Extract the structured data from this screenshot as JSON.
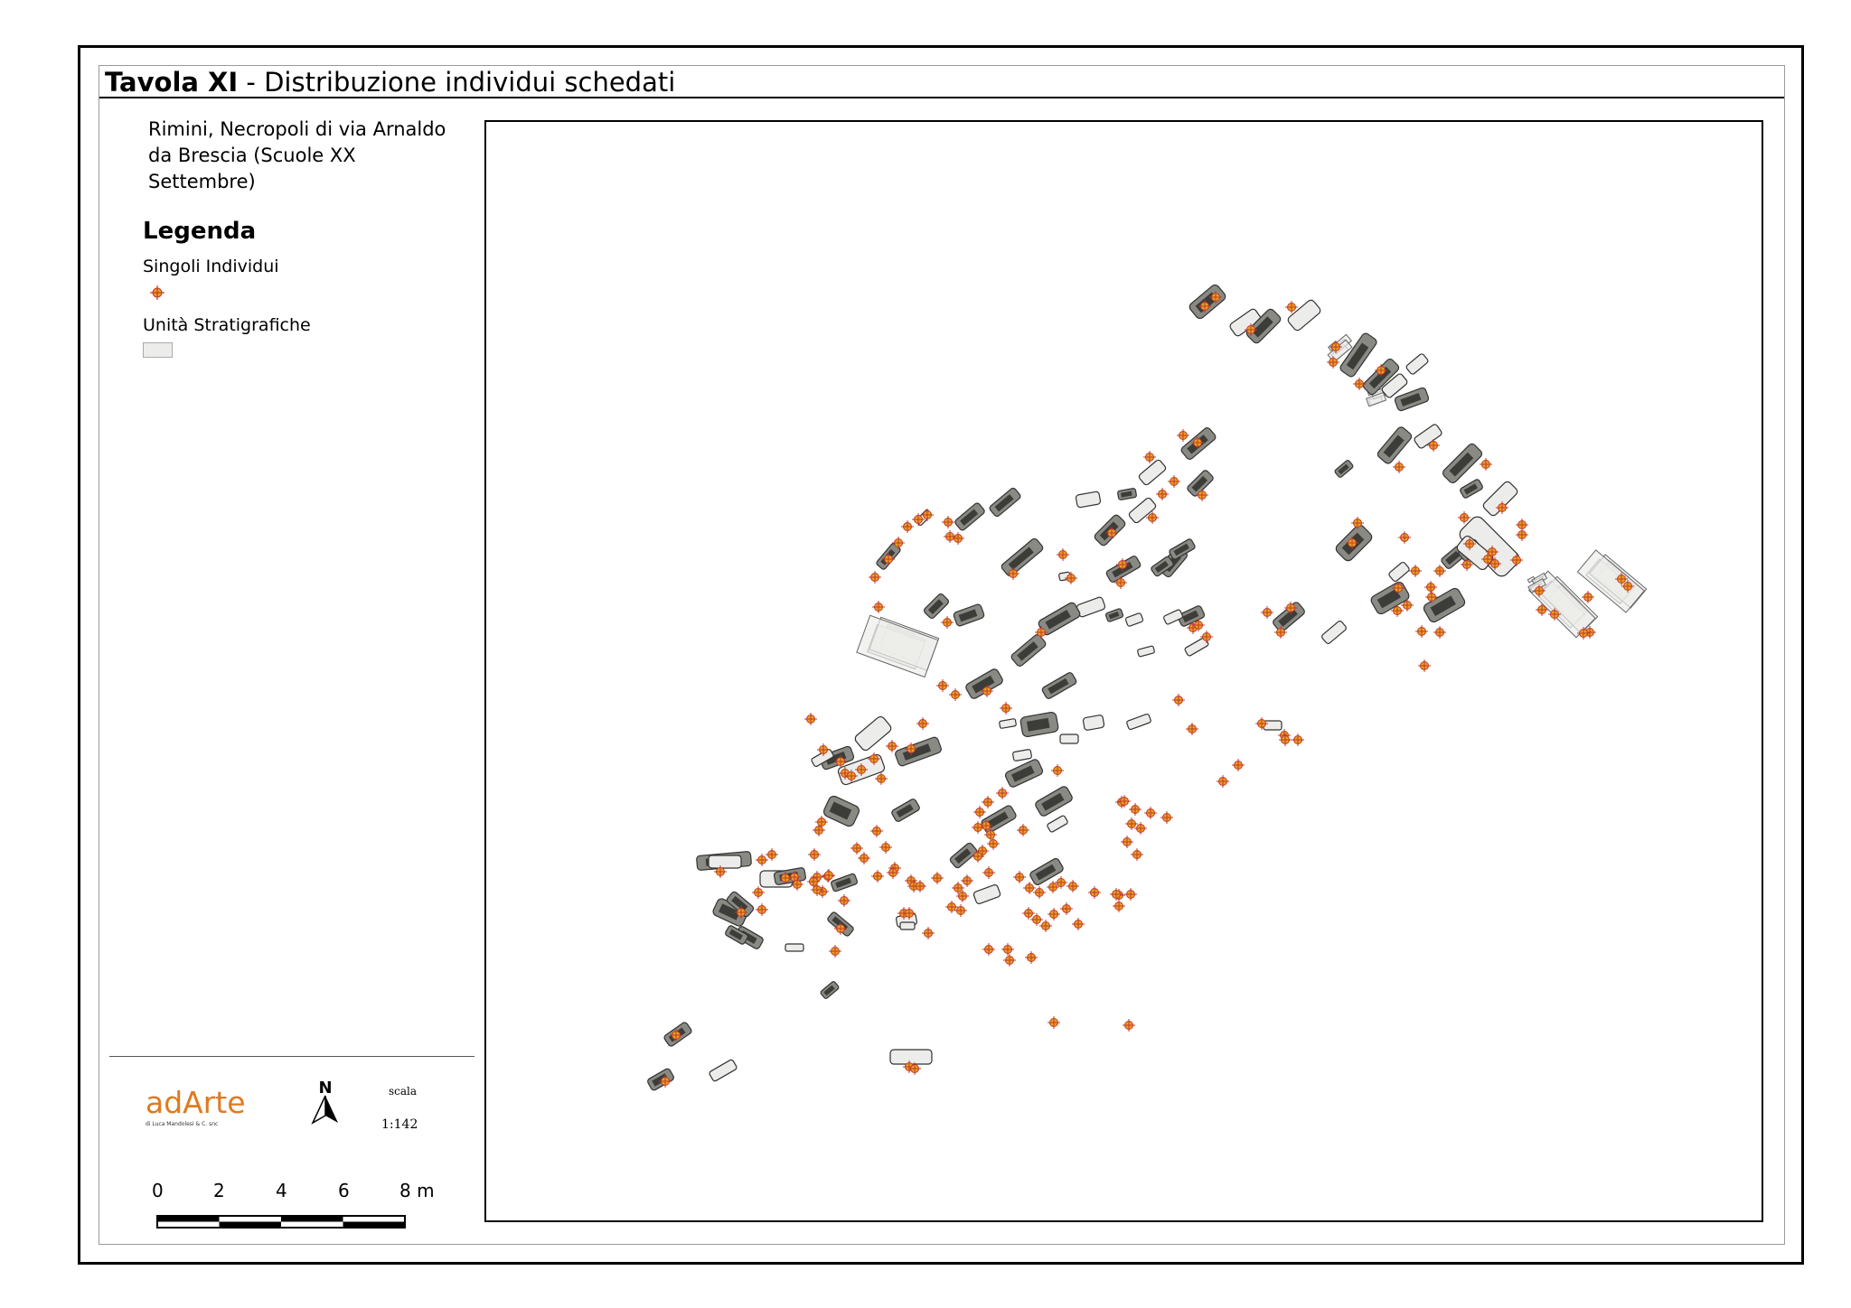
{
  "title": {
    "bold": "Tavola XI",
    "rest": " - Distribuzione individui schedati"
  },
  "subtitle": "Rimini, Necropoli di via Arnaldo da Brescia (Scuole XX Settembre)",
  "legend": {
    "title": "Legenda",
    "items": [
      {
        "label": "Singoli Individui",
        "symbol": "cross-circle-icon"
      },
      {
        "label": "Unità Stratigrafiche",
        "symbol": "polygon-swatch"
      }
    ]
  },
  "logo": {
    "main": "adArte",
    "sub": "di Luca Mandolesi & C. snc"
  },
  "north": {
    "letter": "N"
  },
  "scale": {
    "label": "scala",
    "ratio": "1:142",
    "ticks": [
      "0",
      "2",
      "4",
      "6",
      "8 m"
    ]
  },
  "colors": {
    "point_fill": "#e8a020",
    "point_stroke": "#c0392b",
    "unit_fill": "#ececea",
    "unit_stroke": "#333333"
  }
}
